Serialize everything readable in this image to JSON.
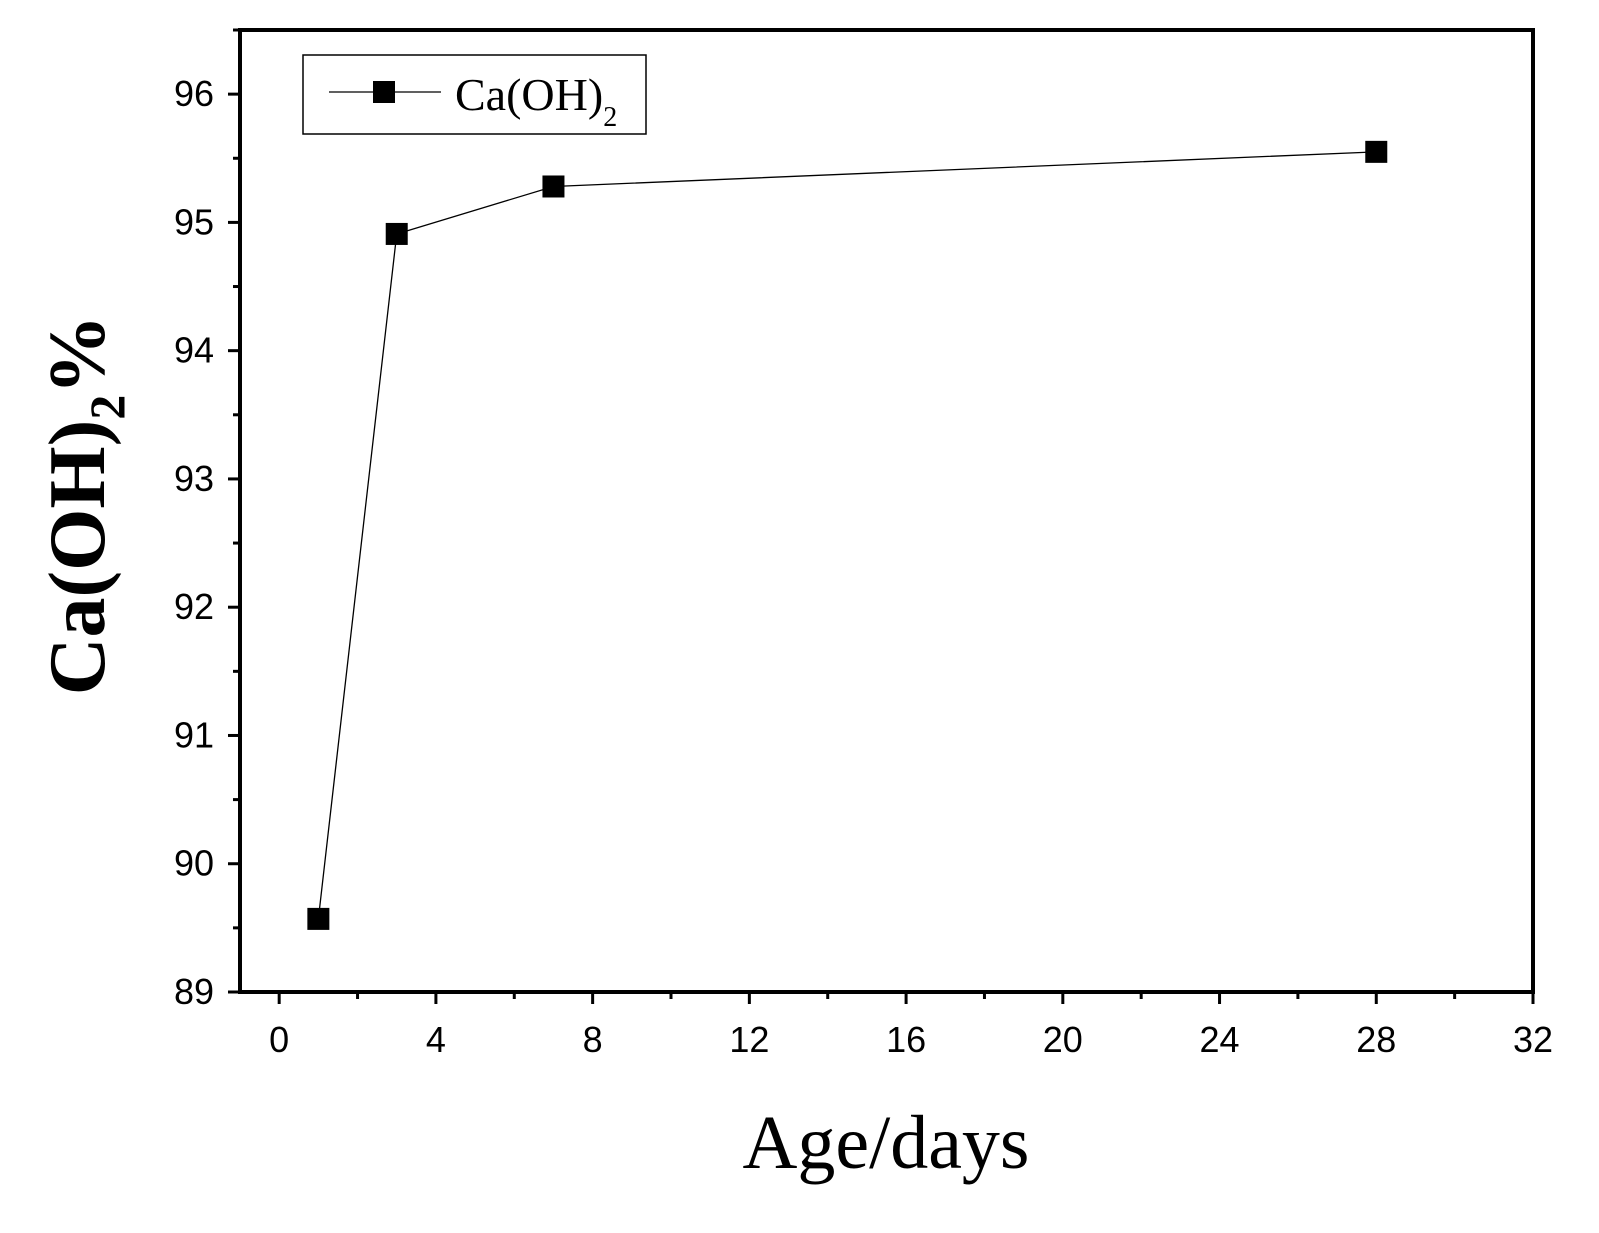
{
  "chart_data": {
    "type": "line",
    "xlabel": "Age/days",
    "ylabel": {
      "base": "Ca(OH)",
      "subscript": "2",
      "suffix": "%"
    },
    "xlim": [
      -1,
      32
    ],
    "ylim": [
      89,
      96.5
    ],
    "xticks": [
      "0",
      "4",
      "8",
      "12",
      "16",
      "20",
      "24",
      "28",
      "32"
    ],
    "yticks": [
      "89",
      "90",
      "91",
      "92",
      "93",
      "94",
      "95",
      "96"
    ],
    "grid": false,
    "legend_position": "top-left",
    "series": [
      {
        "name": {
          "base": "Ca(OH)",
          "subscript": "2"
        },
        "marker": "square",
        "color": "#000000",
        "x": [
          1,
          3,
          7,
          28
        ],
        "y": [
          89.57,
          94.91,
          95.28,
          95.55
        ]
      }
    ]
  }
}
